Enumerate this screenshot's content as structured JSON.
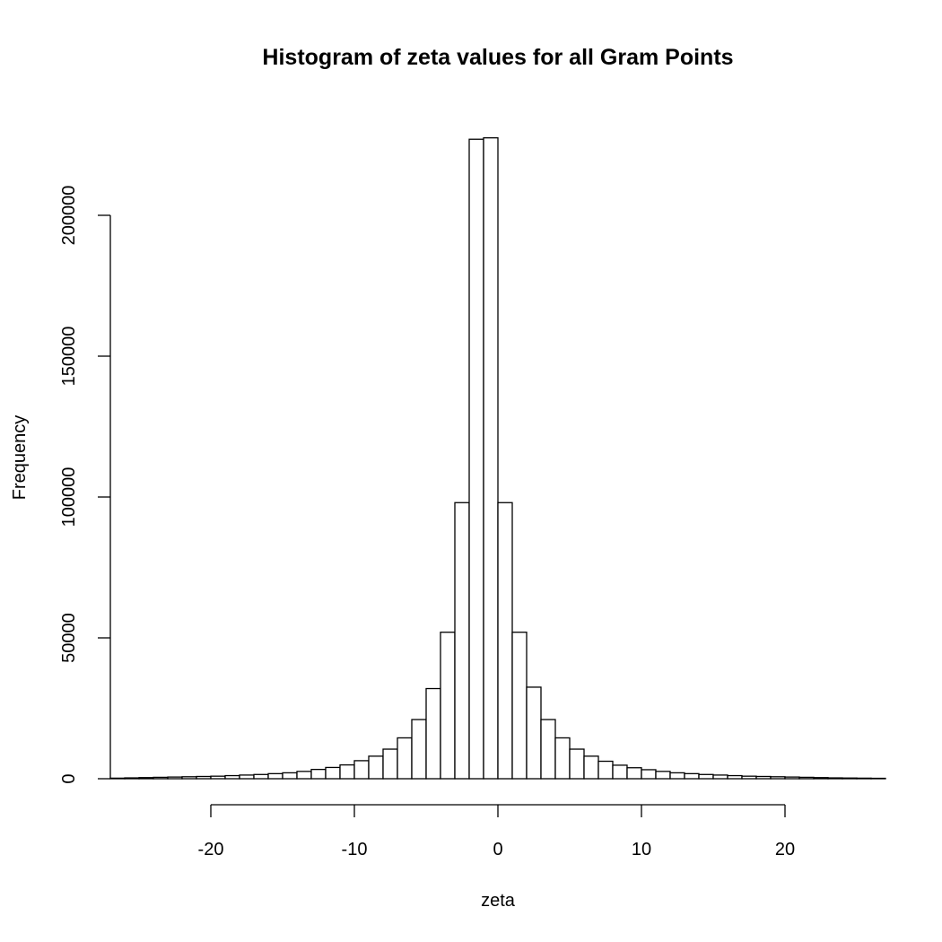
{
  "chart_data": {
    "type": "bar",
    "title": "Histogram of zeta values for all Gram Points",
    "xlabel": "zeta",
    "ylabel": "Frequency",
    "xlim": [
      -27,
      27
    ],
    "ylim": [
      0,
      230000
    ],
    "x_ticks": [
      -20,
      -10,
      0,
      10,
      20
    ],
    "y_ticks": [
      0,
      50000,
      100000,
      150000,
      200000
    ],
    "bin_width": 1,
    "bin_start": -27,
    "values": [
      200,
      300,
      400,
      500,
      600,
      700,
      800,
      900,
      1100,
      1300,
      1500,
      1800,
      2100,
      2600,
      3300,
      4000,
      4900,
      6400,
      8000,
      10500,
      14500,
      21000,
      32000,
      52000,
      98000,
      227000,
      227500,
      98000,
      52000,
      32500,
      21000,
      14500,
      10500,
      8000,
      6200,
      4800,
      3900,
      3200,
      2600,
      2100,
      1800,
      1500,
      1300,
      1100,
      900,
      800,
      700,
      600,
      500,
      400,
      300,
      250,
      200,
      150
    ],
    "grid": false
  }
}
